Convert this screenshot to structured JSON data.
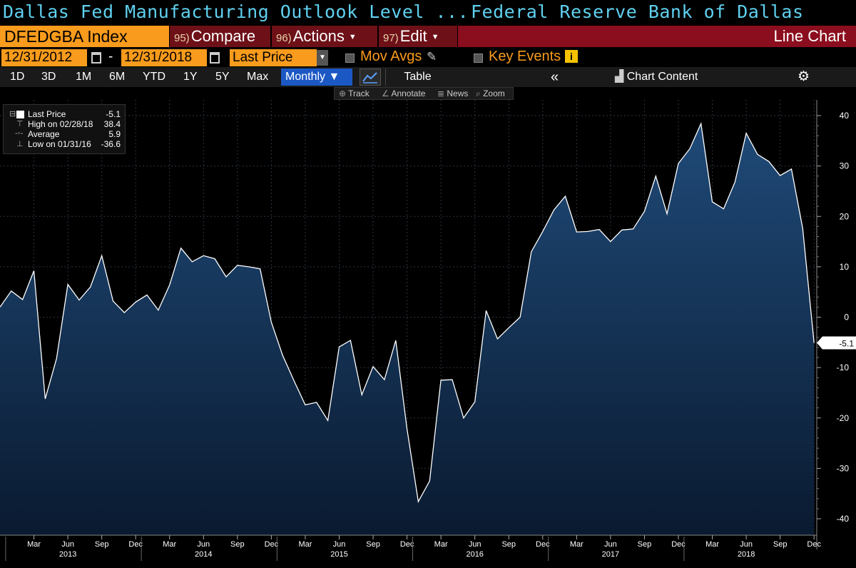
{
  "title": {
    "security_name": "Dallas Fed Manufacturing Outlook Level ...",
    "source": "Federal Reserve Bank of Dallas"
  },
  "command_bar": {
    "ticker": "DFEDGBA Index",
    "compare": {
      "num": "95)",
      "label": "Compare"
    },
    "actions": {
      "num": "96)",
      "label": "Actions"
    },
    "edit": {
      "num": "97)",
      "label": "Edit"
    },
    "view": "Line Chart"
  },
  "date_row": {
    "start_date": "12/31/2012",
    "separator": "-",
    "end_date": "12/31/2018",
    "field": "Last Price",
    "mov_avgs": "Mov Avgs",
    "key_events": "Key Events",
    "info_icon": "i"
  },
  "tabs": {
    "t1d": "1D",
    "t3d": "3D",
    "t1m": "1M",
    "t6m": "6M",
    "tytd": "YTD",
    "t1y": "1Y",
    "t5y": "5Y",
    "tmax": "Max",
    "monthly": "Monthly ▼",
    "table": "Table",
    "collapse": "«",
    "chart_content": "Chart Content"
  },
  "chart_tools": {
    "track": "Track",
    "annotate": "Annotate",
    "news": "News",
    "zoom": "Zoom"
  },
  "legend": {
    "last_price": {
      "label": "Last Price",
      "value": "-5.1"
    },
    "high": {
      "label": "High on 02/28/18",
      "value": "38.4"
    },
    "average": {
      "label": "Average",
      "value": "5.9"
    },
    "low": {
      "label": "Low on 01/31/16",
      "value": "-36.6"
    }
  },
  "colors": {
    "ticker_bg": "#f99b1c",
    "menu_bg": "#6e1018",
    "title_text": "#5fd1f0",
    "area_top": "#1f4a78",
    "area_bottom": "#0a1a30",
    "line": "#ffffff"
  },
  "chart_data": {
    "type": "area",
    "title": "",
    "xlabel": "",
    "ylabel": "",
    "ylim": [
      -45,
      45
    ],
    "y_ticks": [
      -40,
      -30,
      -20,
      -10,
      0,
      10,
      20,
      30,
      40
    ],
    "last_value_label": "-5.1",
    "x_month_ticks": [
      {
        "label": "Mar",
        "date": "2013-03"
      },
      {
        "label": "Jun",
        "date": "2013-06"
      },
      {
        "label": "Sep",
        "date": "2013-09"
      },
      {
        "label": "Dec",
        "date": "2013-12"
      },
      {
        "label": "Mar",
        "date": "2014-03"
      },
      {
        "label": "Jun",
        "date": "2014-06"
      },
      {
        "label": "Sep",
        "date": "2014-09"
      },
      {
        "label": "Dec",
        "date": "2014-12"
      },
      {
        "label": "Mar",
        "date": "2015-03"
      },
      {
        "label": "Jun",
        "date": "2015-06"
      },
      {
        "label": "Sep",
        "date": "2015-09"
      },
      {
        "label": "Dec",
        "date": "2015-12"
      },
      {
        "label": "Mar",
        "date": "2016-03"
      },
      {
        "label": "Jun",
        "date": "2016-06"
      },
      {
        "label": "Sep",
        "date": "2016-09"
      },
      {
        "label": "Dec",
        "date": "2016-12"
      },
      {
        "label": "Mar",
        "date": "2017-03"
      },
      {
        "label": "Jun",
        "date": "2017-06"
      },
      {
        "label": "Sep",
        "date": "2017-09"
      },
      {
        "label": "Dec",
        "date": "2017-12"
      },
      {
        "label": "Mar",
        "date": "2018-03"
      },
      {
        "label": "Jun",
        "date": "2018-06"
      },
      {
        "label": "Sep",
        "date": "2018-09"
      },
      {
        "label": "Dec",
        "date": "2018-12"
      }
    ],
    "x_year_labels": [
      {
        "label": "2013",
        "date": "2013-06"
      },
      {
        "label": "2014",
        "date": "2014-06"
      },
      {
        "label": "2015",
        "date": "2015-06"
      },
      {
        "label": "2016",
        "date": "2016-06"
      },
      {
        "label": "2017",
        "date": "2017-06"
      },
      {
        "label": "2018",
        "date": "2018-06"
      }
    ],
    "series": [
      {
        "x": [
          "2012-12",
          "2013-01",
          "2013-02",
          "2013-03",
          "2013-04",
          "2013-05",
          "2013-06",
          "2013-07",
          "2013-08",
          "2013-09",
          "2013-10",
          "2013-11",
          "2013-12",
          "2014-01",
          "2014-02",
          "2014-03",
          "2014-04",
          "2014-05",
          "2014-06",
          "2014-07",
          "2014-08",
          "2014-09",
          "2014-10",
          "2014-11",
          "2014-12",
          "2015-01",
          "2015-02",
          "2015-03",
          "2015-04",
          "2015-05",
          "2015-06",
          "2015-07",
          "2015-08",
          "2015-09",
          "2015-10",
          "2015-11",
          "2015-12",
          "2016-01",
          "2016-02",
          "2016-03",
          "2016-04",
          "2016-05",
          "2016-06",
          "2016-07",
          "2016-08",
          "2016-09",
          "2016-10",
          "2016-11",
          "2016-12",
          "2017-01",
          "2017-02",
          "2017-03",
          "2017-04",
          "2017-05",
          "2017-06",
          "2017-07",
          "2017-08",
          "2017-09",
          "2017-10",
          "2017-11",
          "2017-12",
          "2018-01",
          "2018-02",
          "2018-03",
          "2018-04",
          "2018-05",
          "2018-06",
          "2018-07",
          "2018-08",
          "2018-09",
          "2018-10",
          "2018-11",
          "2018-12"
        ],
        "values": [
          2.0,
          5.2,
          3.5,
          9.2,
          -16.2,
          -8.2,
          6.5,
          3.4,
          6.0,
          12.2,
          3.2,
          0.9,
          3.0,
          4.4,
          1.4,
          6.4,
          13.7,
          11.0,
          12.2,
          11.6,
          8.0,
          10.3,
          10.0,
          9.6,
          -1.0,
          -7.6,
          -12.6,
          -17.4,
          -16.9,
          -20.5,
          -5.9,
          -4.6,
          -15.4,
          -9.8,
          -12.4,
          -4.6,
          -22.2,
          -36.6,
          -32.5,
          -12.5,
          -12.4,
          -20.0,
          -16.8,
          1.3,
          -4.3,
          -2.1,
          0.0,
          13.0,
          17.0,
          21.3,
          24.0,
          16.9,
          17.0,
          17.4,
          15.0,
          17.3,
          17.5,
          21.0,
          28.0,
          20.5,
          30.5,
          33.4,
          38.4,
          22.9,
          21.5,
          26.8,
          36.5,
          32.3,
          30.9,
          28.1,
          29.4,
          17.6,
          -5.1
        ]
      }
    ]
  }
}
